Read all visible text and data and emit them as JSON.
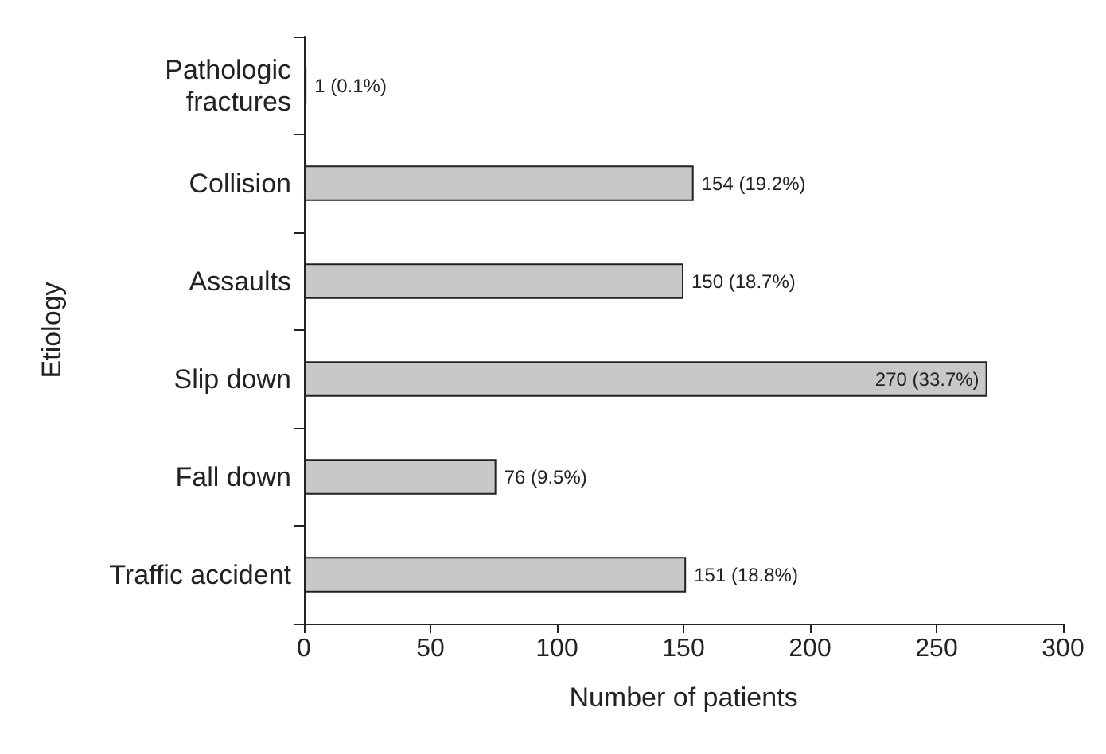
{
  "chart_data": {
    "type": "bar",
    "orientation": "horizontal",
    "xlabel": "Number of patients",
    "ylabel": "Etiology",
    "categories": [
      "Pathologic\nfractures",
      "Collision",
      "Assaults",
      "Slip down",
      "Fall down",
      "Traffic accident"
    ],
    "values": [
      1,
      154,
      150,
      270,
      76,
      151
    ],
    "value_labels": [
      "1 (0.1%)",
      "154 (19.2%)",
      "150 (18.7%)",
      "270 (33.7%)",
      "76 (9.5%)",
      "151 (18.8%)"
    ],
    "color": "#c8c8c8",
    "xlim": [
      0,
      300
    ],
    "xticks": [
      0,
      50,
      100,
      150,
      200,
      250,
      300
    ]
  }
}
